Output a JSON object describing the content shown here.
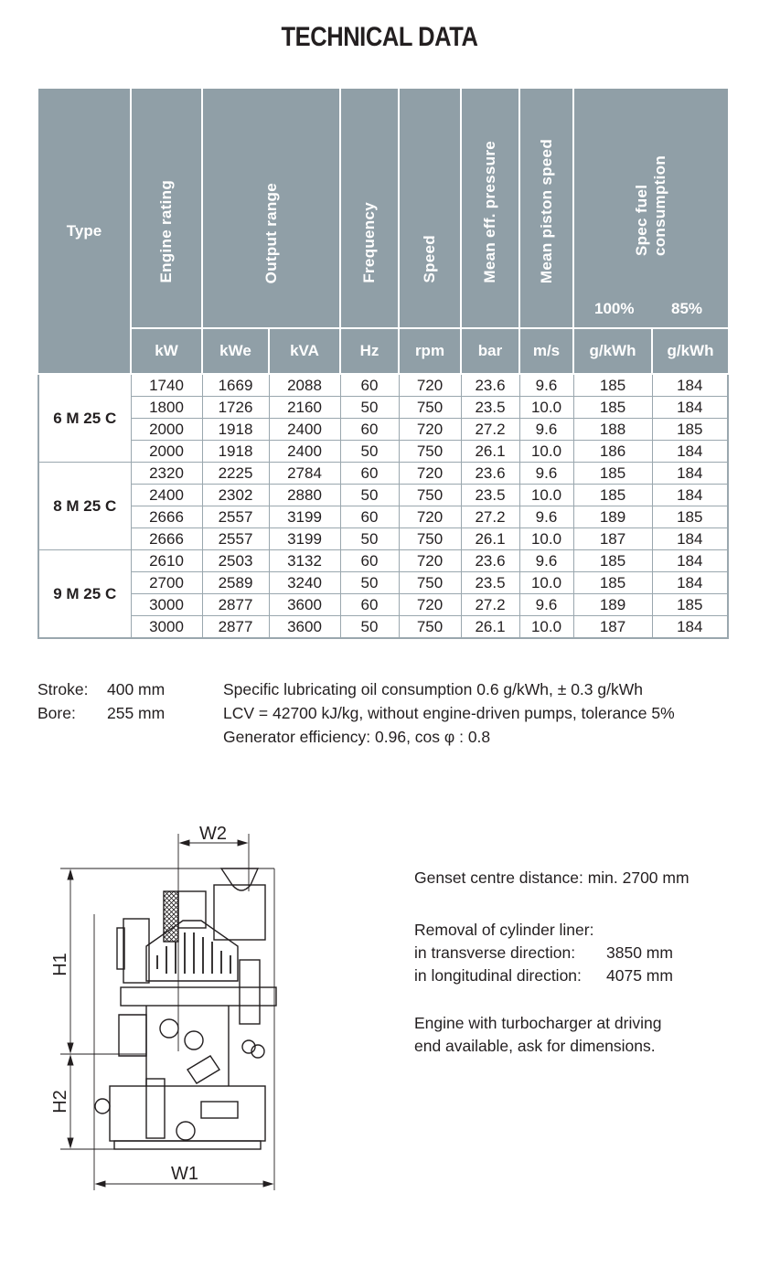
{
  "title": "TECHNICAL DATA",
  "table": {
    "headers": {
      "type": "Type",
      "engine_rating": "Engine rating",
      "output_range": "Output range",
      "frequency": "Frequency",
      "speed": "Speed",
      "mean_eff_pressure": "Mean eff. pressure",
      "mean_piston_speed": "Mean piston speed",
      "spec_fuel_line1": "Spec fuel",
      "spec_fuel_line2": "consumption",
      "pct_100": "100%",
      "pct_85": "85%"
    },
    "units": [
      "kW",
      "kWe",
      "kVA",
      "Hz",
      "rpm",
      "bar",
      "m/s",
      "g/kWh",
      "g/kWh"
    ],
    "groups": [
      {
        "type": "6 M 25 C",
        "rows": [
          [
            "1740",
            "1669",
            "2088",
            "60",
            "720",
            "23.6",
            "9.6",
            "185",
            "184"
          ],
          [
            "1800",
            "1726",
            "2160",
            "50",
            "750",
            "23.5",
            "10.0",
            "185",
            "184"
          ],
          [
            "2000",
            "1918",
            "2400",
            "60",
            "720",
            "27.2",
            "9.6",
            "188",
            "185"
          ],
          [
            "2000",
            "1918",
            "2400",
            "50",
            "750",
            "26.1",
            "10.0",
            "186",
            "184"
          ]
        ]
      },
      {
        "type": "8 M 25 C",
        "rows": [
          [
            "2320",
            "2225",
            "2784",
            "60",
            "720",
            "23.6",
            "9.6",
            "185",
            "184"
          ],
          [
            "2400",
            "2302",
            "2880",
            "50",
            "750",
            "23.5",
            "10.0",
            "185",
            "184"
          ],
          [
            "2666",
            "2557",
            "3199",
            "60",
            "720",
            "27.2",
            "9.6",
            "189",
            "185"
          ],
          [
            "2666",
            "2557",
            "3199",
            "50",
            "750",
            "26.1",
            "10.0",
            "187",
            "184"
          ]
        ]
      },
      {
        "type": "9 M 25 C",
        "rows": [
          [
            "2610",
            "2503",
            "3132",
            "60",
            "720",
            "23.6",
            "9.6",
            "185",
            "184"
          ],
          [
            "2700",
            "2589",
            "3240",
            "50",
            "750",
            "23.5",
            "10.0",
            "185",
            "184"
          ],
          [
            "3000",
            "2877",
            "3600",
            "60",
            "720",
            "27.2",
            "9.6",
            "189",
            "185"
          ],
          [
            "3000",
            "2877",
            "3600",
            "50",
            "750",
            "26.1",
            "10.0",
            "187",
            "184"
          ]
        ]
      }
    ]
  },
  "specs": {
    "stroke_label": "Stroke:",
    "stroke_value": "400 mm",
    "bore_label": "Bore:",
    "bore_value": "255 mm",
    "lines": [
      "Specific lubricating oil consumption 0.6 g/kWh, ± 0.3 g/kWh",
      "LCV = 42700 kJ/kg, without engine-driven pumps, tolerance 5%",
      "Generator efficiency: 0.96, cos φ : 0.8"
    ]
  },
  "drawing": {
    "labels": {
      "w1": "W1",
      "w2": "W2",
      "h1": "H1",
      "h2": "H2"
    }
  },
  "notes": {
    "genset": "Genset centre distance: min. 2700 mm",
    "removal_title": "Removal of cylinder liner:",
    "transverse_label": "in transverse direction:",
    "transverse_value": "3850 mm",
    "longitudinal_label": "in longitudinal direction:",
    "longitudinal_value": "4075 mm",
    "turbo_line1": "Engine with turbocharger at driving",
    "turbo_line2": "end available, ask for dimensions."
  },
  "colors": {
    "header_bg": "#909fa7",
    "grid": "#9aa7ae",
    "text": "#231f20"
  }
}
